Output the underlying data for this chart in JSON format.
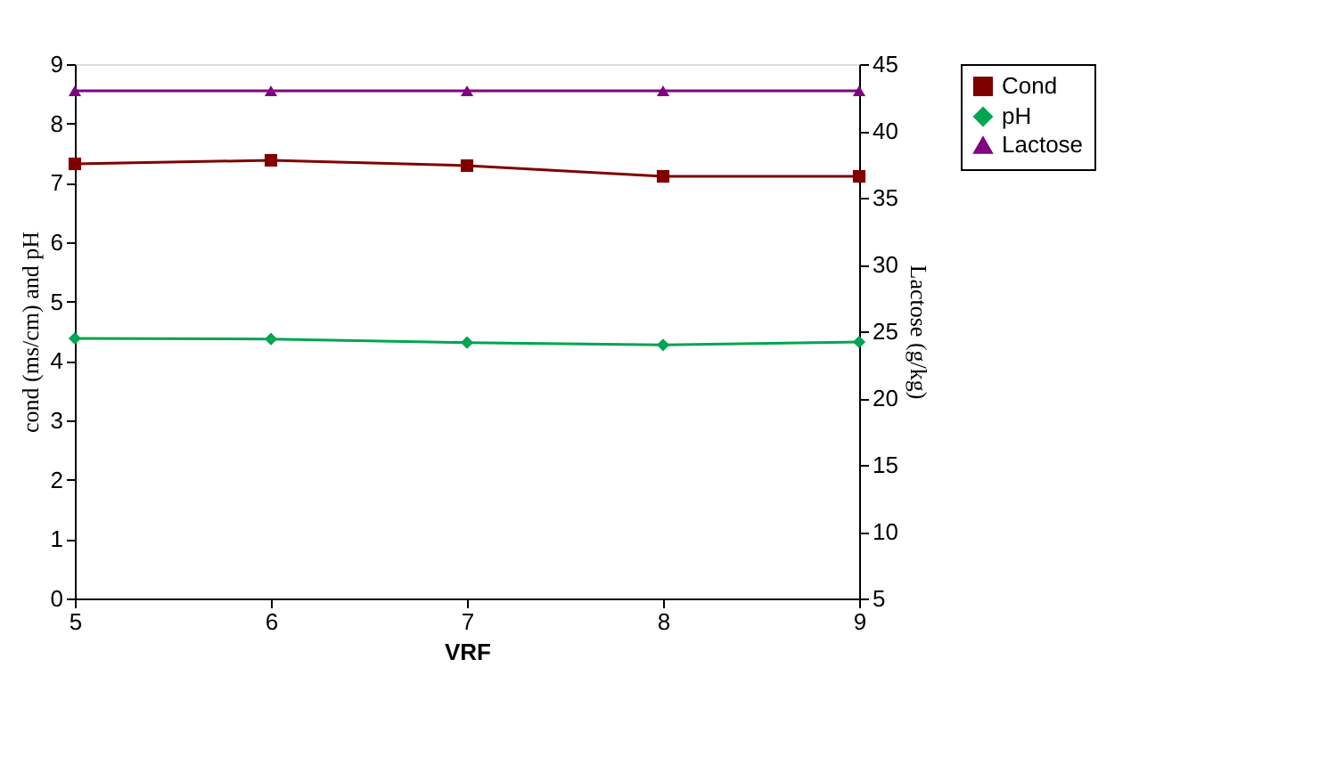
{
  "chart_data": {
    "type": "line",
    "xlabel": "VRF",
    "ylabel": "cond (ms/cm) and pH",
    "y2label": "Lactose   (g/kg)",
    "x": [
      5,
      6,
      7,
      8,
      9
    ],
    "xlim": [
      5,
      9
    ],
    "xticks": [
      5,
      6,
      7,
      8,
      9
    ],
    "ylim": [
      0,
      9
    ],
    "yticks": [
      0,
      1,
      2,
      3,
      4,
      5,
      6,
      7,
      8,
      9
    ],
    "y2lim": [
      5,
      45
    ],
    "y2ticks": [
      5,
      10,
      15,
      20,
      25,
      30,
      35,
      40,
      45
    ],
    "grid": false,
    "legend": "right",
    "series": [
      {
        "name": "Cond",
        "color": "#800000",
        "marker": "square",
        "values": [
          7.32,
          7.38,
          7.29,
          7.11,
          7.11
        ]
      },
      {
        "name": "pH",
        "color": "#00a550",
        "marker": "diamond",
        "values": [
          4.38,
          4.37,
          4.31,
          4.27,
          4.32
        ]
      },
      {
        "name": "Lactose",
        "color": "#800080",
        "marker": "triangle",
        "axis": "y2",
        "values": [
          43,
          43,
          43,
          43,
          43
        ]
      }
    ]
  }
}
